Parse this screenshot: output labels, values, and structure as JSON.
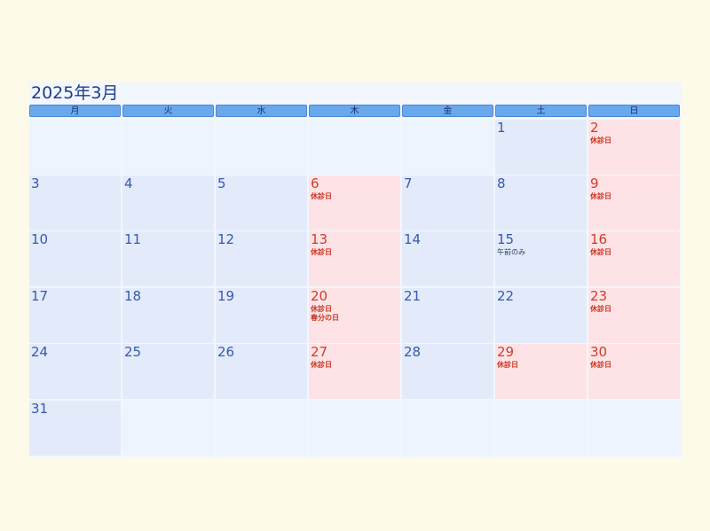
{
  "calendar": {
    "title": "2025年3月",
    "weekdays": [
      "月",
      "火",
      "水",
      "木",
      "金",
      "土",
      "日"
    ],
    "weeks": [
      [
        {
          "day": "",
          "type": "empty",
          "notes": []
        },
        {
          "day": "",
          "type": "empty",
          "notes": []
        },
        {
          "day": "",
          "type": "empty",
          "notes": []
        },
        {
          "day": "",
          "type": "empty",
          "notes": []
        },
        {
          "day": "",
          "type": "empty",
          "notes": []
        },
        {
          "day": "1",
          "type": "normal",
          "notes": []
        },
        {
          "day": "2",
          "type": "holiday",
          "notes": [
            "休診日"
          ]
        }
      ],
      [
        {
          "day": "3",
          "type": "normal",
          "notes": []
        },
        {
          "day": "4",
          "type": "normal",
          "notes": []
        },
        {
          "day": "5",
          "type": "normal",
          "notes": []
        },
        {
          "day": "6",
          "type": "holiday",
          "notes": [
            "休診日"
          ]
        },
        {
          "day": "7",
          "type": "normal",
          "notes": []
        },
        {
          "day": "8",
          "type": "normal",
          "notes": []
        },
        {
          "day": "9",
          "type": "holiday",
          "notes": [
            "休診日"
          ]
        }
      ],
      [
        {
          "day": "10",
          "type": "normal",
          "notes": []
        },
        {
          "day": "11",
          "type": "normal",
          "notes": []
        },
        {
          "day": "12",
          "type": "normal",
          "notes": []
        },
        {
          "day": "13",
          "type": "holiday",
          "notes": [
            "休診日"
          ]
        },
        {
          "day": "14",
          "type": "normal",
          "notes": []
        },
        {
          "day": "15",
          "type": "normal",
          "notes": [
            "午前のみ"
          ]
        },
        {
          "day": "16",
          "type": "holiday",
          "notes": [
            "休診日"
          ]
        }
      ],
      [
        {
          "day": "17",
          "type": "normal",
          "notes": []
        },
        {
          "day": "18",
          "type": "normal",
          "notes": []
        },
        {
          "day": "19",
          "type": "normal",
          "notes": []
        },
        {
          "day": "20",
          "type": "holiday",
          "notes": [
            "休診日",
            "春分の日"
          ]
        },
        {
          "day": "21",
          "type": "normal",
          "notes": []
        },
        {
          "day": "22",
          "type": "normal",
          "notes": []
        },
        {
          "day": "23",
          "type": "holiday",
          "notes": [
            "休診日"
          ]
        }
      ],
      [
        {
          "day": "24",
          "type": "normal",
          "notes": []
        },
        {
          "day": "25",
          "type": "normal",
          "notes": []
        },
        {
          "day": "26",
          "type": "normal",
          "notes": []
        },
        {
          "day": "27",
          "type": "holiday",
          "notes": [
            "休診日"
          ]
        },
        {
          "day": "28",
          "type": "normal",
          "notes": []
        },
        {
          "day": "29",
          "type": "holiday",
          "notes": [
            "休診日"
          ]
        },
        {
          "day": "30",
          "type": "holiday",
          "notes": [
            "休診日"
          ]
        }
      ],
      [
        {
          "day": "31",
          "type": "normal",
          "notes": []
        },
        {
          "day": "",
          "type": "empty",
          "notes": []
        },
        {
          "day": "",
          "type": "empty",
          "notes": []
        },
        {
          "day": "",
          "type": "empty",
          "notes": []
        },
        {
          "day": "",
          "type": "empty",
          "notes": []
        },
        {
          "day": "",
          "type": "empty",
          "notes": []
        },
        {
          "day": "",
          "type": "empty",
          "notes": []
        }
      ]
    ]
  },
  "colors": {
    "page_background": "#fdfaea",
    "header_bar": "#6aa8ee",
    "title_text": "#1d3c8c",
    "weekday_cell": "#e3ebfb",
    "empty_cell": "#eef4fd",
    "holiday_cell": "#fde3e5",
    "holiday_text": "#cf3c2b",
    "day_text": "#3559ad"
  }
}
